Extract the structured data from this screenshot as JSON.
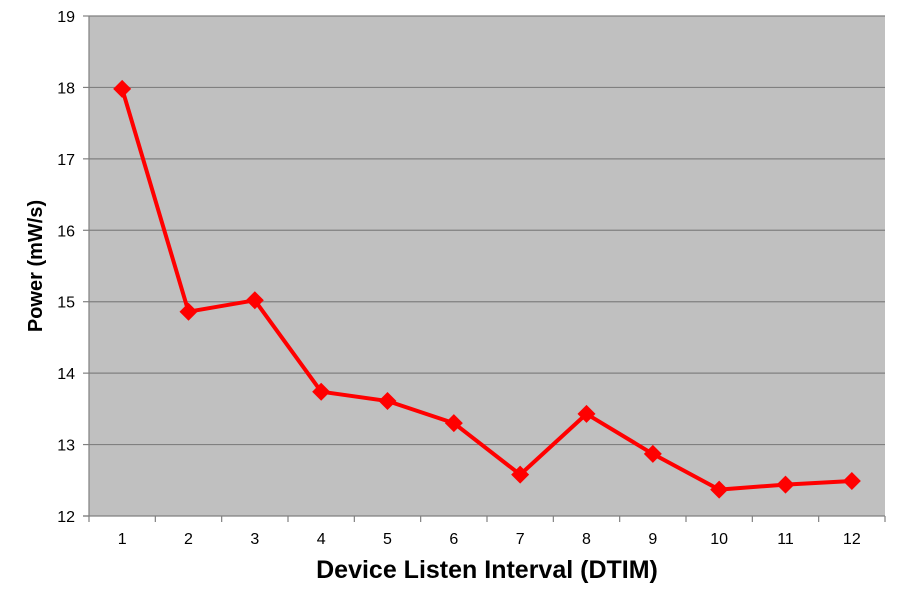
{
  "chart_data": {
    "type": "line",
    "title": "",
    "xlabel": "Device Listen Interval (DTIM)",
    "ylabel": "Power (mW/s)",
    "x": [
      "1",
      "2",
      "3",
      "4",
      "5",
      "6",
      "7",
      "8",
      "9",
      "10",
      "11",
      "12"
    ],
    "series": [
      {
        "name": "",
        "values": [
          17.98,
          14.86,
          15.02,
          13.74,
          13.61,
          13.3,
          12.58,
          13.43,
          12.87,
          12.37,
          12.44,
          12.49
        ],
        "color": "#ff0000",
        "marker": "diamond"
      }
    ],
    "ylim": [
      12,
      19
    ],
    "yticks": [
      12,
      13,
      14,
      15,
      16,
      17,
      18,
      19
    ],
    "grid": true,
    "legend": "none",
    "plot_background": "#c0c0c0",
    "gridline_color": "#808080"
  }
}
